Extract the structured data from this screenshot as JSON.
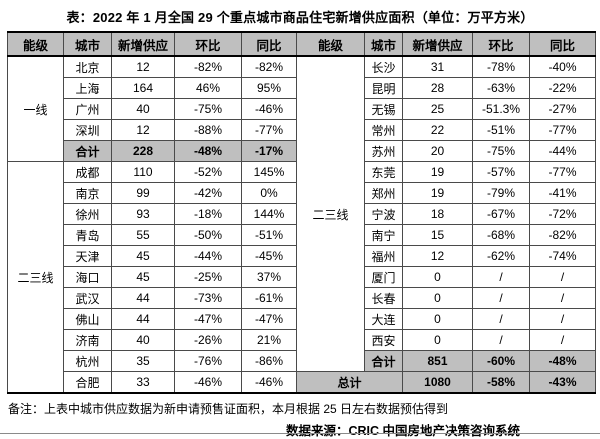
{
  "title": "表：2022 年 1 月全国 29 个重点城市商品住宅新增供应面积（单位：万平方米）",
  "columns": [
    "能级",
    "城市",
    "新增供应",
    "环比",
    "同比"
  ],
  "tiers": {
    "left_tier1": "一线",
    "left_tier23": "二三线",
    "right_tier23": "二三线"
  },
  "L": [
    [
      "北京",
      "12",
      "-82%",
      "-82%"
    ],
    [
      "上海",
      "164",
      "46%",
      "95%"
    ],
    [
      "广州",
      "40",
      "-75%",
      "-46%"
    ],
    [
      "深圳",
      "12",
      "-88%",
      "-77%"
    ],
    [
      "合计",
      "228",
      "-48%",
      "-17%"
    ],
    [
      "成都",
      "110",
      "-52%",
      "145%"
    ],
    [
      "南京",
      "99",
      "-42%",
      "0%"
    ],
    [
      "徐州",
      "93",
      "-18%",
      "144%"
    ],
    [
      "青岛",
      "55",
      "-50%",
      "-51%"
    ],
    [
      "天津",
      "45",
      "-44%",
      "-45%"
    ],
    [
      "海口",
      "45",
      "-25%",
      "37%"
    ],
    [
      "武汉",
      "44",
      "-73%",
      "-61%"
    ],
    [
      "佛山",
      "44",
      "-47%",
      "-47%"
    ],
    [
      "济南",
      "40",
      "-26%",
      "21%"
    ],
    [
      "杭州",
      "35",
      "-76%",
      "-86%"
    ],
    [
      "合肥",
      "33",
      "-46%",
      "-46%"
    ]
  ],
  "R": [
    [
      "长沙",
      "31",
      "-78%",
      "-40%"
    ],
    [
      "昆明",
      "28",
      "-63%",
      "-22%"
    ],
    [
      "无锡",
      "25",
      "-51.3%",
      "-27%"
    ],
    [
      "常州",
      "22",
      "-51%",
      "-77%"
    ],
    [
      "苏州",
      "20",
      "-75%",
      "-44%"
    ],
    [
      "东莞",
      "19",
      "-57%",
      "-77%"
    ],
    [
      "郑州",
      "19",
      "-79%",
      "-41%"
    ],
    [
      "宁波",
      "18",
      "-67%",
      "-72%"
    ],
    [
      "南宁",
      "15",
      "-68%",
      "-82%"
    ],
    [
      "福州",
      "12",
      "-62%",
      "-74%"
    ],
    [
      "厦门",
      "0",
      "/",
      "/"
    ],
    [
      "长春",
      "0",
      "/",
      "/"
    ],
    [
      "大连",
      "0",
      "/",
      "/"
    ],
    [
      "西安",
      "0",
      "/",
      "/"
    ],
    [
      "合计",
      "851",
      "-60%",
      "-48%"
    ]
  ],
  "grand": {
    "label": "总计",
    "values": [
      "1080",
      "-58%",
      "-43%"
    ]
  },
  "notes": {
    "remark": "备注：上表中城市供应数据为新申请预售证面积，本月根据 25 日左右数据预估得到",
    "source": "数据来源：CRIC 中国房地产决策咨询系统"
  },
  "colors": {
    "header_bg": "#bfbfbf",
    "total_row_bg": "#bfbfbf",
    "grid_border": "#4a4a4a",
    "frame_border": "#000000",
    "text": "#000000"
  }
}
